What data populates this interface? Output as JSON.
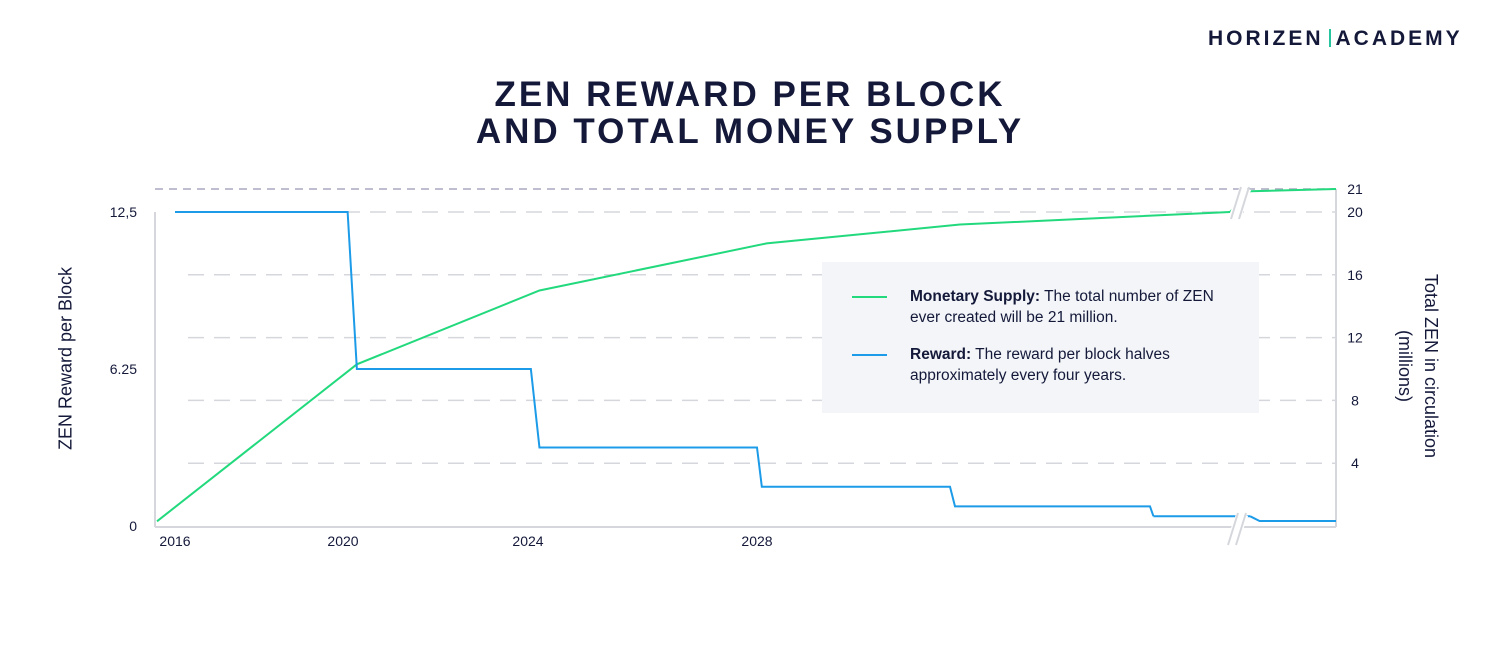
{
  "logo": {
    "left": "HORIZEN",
    "right": "ACADEMY"
  },
  "title_lines": [
    "ZEN REWARD PER BLOCK",
    "AND TOTAL MONEY SUPPLY"
  ],
  "legend": [
    {
      "bold": "Monetary Supply:",
      "text": " The total number of ZEN ever created will be 21 million.",
      "color": "#22d97d"
    },
    {
      "bold": "Reward:",
      "text": " The reward per block halves approximately every four years.",
      "color": "#1c9be8"
    }
  ],
  "chart_data": {
    "type": "line",
    "title": "ZEN REWARD PER BLOCK AND TOTAL MONEY SUPPLY",
    "ylabel": "ZEN Reward per Block",
    "ylabel_right": [
      "Total ZEN in circulation",
      "(millions)"
    ],
    "x_ticks": [
      "2016",
      "2020",
      "2024",
      "2028"
    ],
    "y_ticks_left": [
      "0",
      "6.25",
      "12,5"
    ],
    "y_ticks_right": [
      "4",
      "8",
      "12",
      "16",
      "20",
      "21"
    ],
    "ylim_left": [
      0,
      12.5
    ],
    "ylim_right": [
      0,
      21
    ],
    "axis_break": "after ~2040",
    "series": [
      {
        "name": "Monetary Supply",
        "axis": "right",
        "color": "#22d97d",
        "points": [
          [
            2015.9,
            0.3
          ],
          [
            2020.3,
            10.3
          ],
          [
            2024.2,
            15
          ],
          [
            2028.2,
            18
          ],
          [
            2032.2,
            19.2
          ],
          [
            2039.5,
            20
          ],
          [
            2040.2,
            20.9
          ],
          [
            2042,
            21
          ]
        ]
      },
      {
        "name": "Reward",
        "axis": "left",
        "color": "#1c9be8",
        "points": [
          [
            2016,
            12.5
          ],
          [
            2020.1,
            12.5
          ],
          [
            2020.3,
            6.25
          ],
          [
            2024.05,
            6.25
          ],
          [
            2024.2,
            3.125
          ],
          [
            2028,
            3.125
          ],
          [
            2028.1,
            1.5625
          ],
          [
            2032,
            1.5625
          ],
          [
            2032.1,
            0.78
          ],
          [
            2036,
            0.78
          ],
          [
            2036.15,
            0.39
          ],
          [
            2040.2,
            0.39
          ],
          [
            2040.4,
            0.2
          ],
          [
            2042,
            0.2
          ]
        ]
      }
    ]
  }
}
